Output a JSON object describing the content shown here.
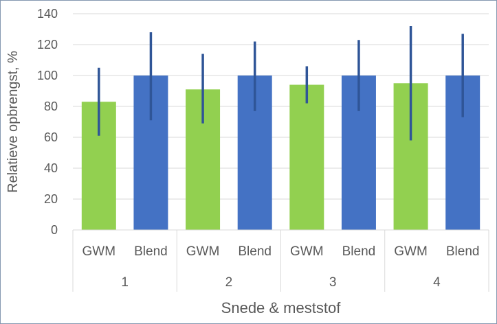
{
  "chart_data": {
    "type": "bar",
    "title": "",
    "xlabel": "Snede & meststof",
    "ylabel": "Relatieve opbrengst, %",
    "ylim": [
      0,
      140
    ],
    "yticks": [
      0,
      20,
      40,
      60,
      80,
      100,
      120,
      140
    ],
    "grid": true,
    "legend": "none",
    "groups": [
      {
        "label": "1",
        "bars": [
          {
            "category": "GWM",
            "value": 83,
            "err_low": 61,
            "err_high": 105,
            "color": "#92d050"
          },
          {
            "category": "Blend",
            "value": 100,
            "err_low": 71,
            "err_high": 128,
            "color": "#4472c4"
          }
        ]
      },
      {
        "label": "2",
        "bars": [
          {
            "category": "GWM",
            "value": 91,
            "err_low": 69,
            "err_high": 114,
            "color": "#92d050"
          },
          {
            "category": "Blend",
            "value": 100,
            "err_low": 77,
            "err_high": 122,
            "color": "#4472c4"
          }
        ]
      },
      {
        "label": "3",
        "bars": [
          {
            "category": "GWM",
            "value": 94,
            "err_low": 82,
            "err_high": 106,
            "color": "#92d050"
          },
          {
            "category": "Blend",
            "value": 100,
            "err_low": 77,
            "err_high": 123,
            "color": "#4472c4"
          }
        ]
      },
      {
        "label": "4",
        "bars": [
          {
            "category": "GWM",
            "value": 95,
            "err_low": 58,
            "err_high": 132,
            "color": "#92d050"
          },
          {
            "category": "Blend",
            "value": 100,
            "err_low": 73,
            "err_high": 127,
            "color": "#4472c4"
          }
        ]
      }
    ],
    "error_bar_color": "#2f5597"
  }
}
